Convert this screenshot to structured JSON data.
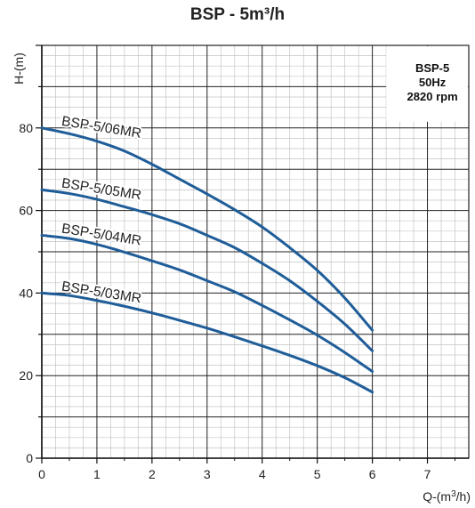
{
  "chart_data": {
    "type": "line",
    "title": "BSP - 5m³/h",
    "xlabel": "Q-(m³/h)",
    "ylabel": "H-(m)",
    "xlim": [
      0,
      7.75
    ],
    "ylim": [
      0,
      100
    ],
    "x_ticks": [
      "0",
      "1",
      "2",
      "3",
      "4",
      "5",
      "6",
      "7"
    ],
    "y_ticks": [
      "0",
      "20",
      "40",
      "60",
      "80"
    ],
    "grid": true,
    "info_box": [
      "BSP-5",
      "50Hz",
      "2820 rpm"
    ],
    "series": [
      {
        "name": "BSP-5/06MR",
        "color": "#1f5d99",
        "x": [
          0,
          0.5,
          1,
          1.5,
          2,
          2.5,
          3,
          3.5,
          4,
          4.5,
          5,
          5.5,
          6
        ],
        "y": [
          80,
          78.6,
          76.8,
          74.4,
          71.2,
          67.6,
          64,
          60.2,
          56,
          51,
          45.5,
          38.8,
          31
        ]
      },
      {
        "name": "BSP-5/05MR",
        "color": "#1f5d99",
        "x": [
          0,
          0.5,
          1,
          1.5,
          2,
          2.5,
          3,
          3.5,
          4,
          4.5,
          5,
          5.5,
          6
        ],
        "y": [
          65,
          64.1,
          62.7,
          60.9,
          59,
          56.8,
          54,
          51,
          47.2,
          43,
          38,
          32.5,
          26
        ]
      },
      {
        "name": "BSP-5/04MR",
        "color": "#1f5d99",
        "x": [
          0,
          0.5,
          1,
          1.5,
          2,
          2.5,
          3,
          3.5,
          4,
          4.5,
          5,
          5.5,
          6
        ],
        "y": [
          54,
          53.2,
          51.8,
          49.9,
          47.8,
          45.6,
          43,
          40.3,
          37,
          33.5,
          29.8,
          25.6,
          21
        ]
      },
      {
        "name": "BSP-5/03MR",
        "color": "#1f5d99",
        "x": [
          0,
          0.5,
          1,
          1.5,
          2,
          2.5,
          3,
          3.5,
          4,
          4.5,
          5,
          5.5,
          6
        ],
        "y": [
          40,
          39.4,
          38.2,
          36.8,
          35.2,
          33.4,
          31.5,
          29.4,
          27.2,
          24.9,
          22.4,
          19.5,
          16
        ]
      }
    ]
  }
}
